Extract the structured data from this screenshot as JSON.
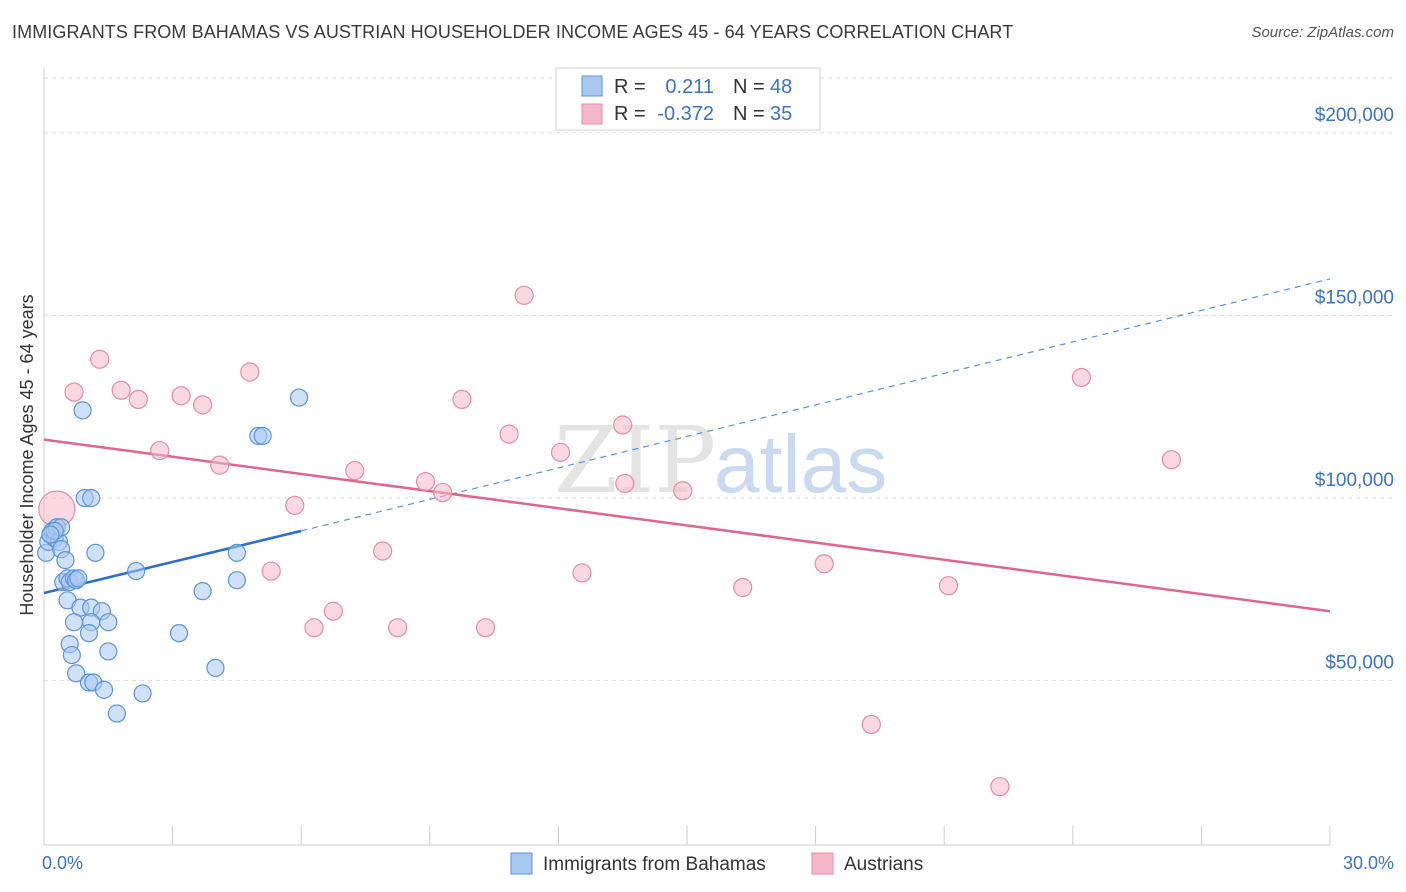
{
  "header": {
    "title": "IMMIGRANTS FROM BAHAMAS VS AUSTRIAN HOUSEHOLDER INCOME AGES 45 - 64 YEARS CORRELATION CHART",
    "source": "Source: ZipAtlas.com"
  },
  "watermark": {
    "zip": "ZIP",
    "atlas": "atlas"
  },
  "colors": {
    "blue_fill": "#a9c8f0",
    "blue_stroke": "#5b93d8",
    "blue_line": "#2a6fcf",
    "pink_fill": "#f5b8cb",
    "pink_stroke": "#e88aa6",
    "pink_line": "#e0658e",
    "tick_text": "#3b73c7",
    "grid": "#dddddd"
  },
  "legend": {
    "rows": [
      {
        "r_label": "R =",
        "r_value": "0.211",
        "n_label": "N =",
        "n_value": "48"
      },
      {
        "r_label": "R =",
        "r_value": "-0.372",
        "n_label": "N =",
        "n_value": "35"
      }
    ]
  },
  "chart_data": {
    "type": "scatter",
    "title": "IMMIGRANTS FROM BAHAMAS VS AUSTRIAN HOUSEHOLDER INCOME AGES 45 - 64 YEARS CORRELATION CHART",
    "xlabel": "",
    "ylabel": "Householder Income Ages 45 - 64 years",
    "xlim": [
      0,
      30
    ],
    "ylim": [
      5000,
      215000
    ],
    "x_tick_labels": [
      "0.0%",
      "30.0%"
    ],
    "y_ticks": [
      50000,
      100000,
      150000,
      200000
    ],
    "y_tick_labels": [
      "$50,000",
      "$100,000",
      "$150,000",
      "$200,000"
    ],
    "grid": true,
    "legend_position": "top-center",
    "series": [
      {
        "name": "Immigrants from Bahamas",
        "color": "#5b93d8",
        "R": 0.211,
        "N": 48,
        "trend": {
          "x": [
            0.0,
            6.0
          ],
          "y": [
            74000,
            91000
          ],
          "dashed_extension": {
            "x": [
              6.0,
              30.0
            ],
            "y": [
              91000,
              160000
            ]
          }
        },
        "points": [
          [
            0.05,
            85000
          ],
          [
            0.1,
            88000
          ],
          [
            0.15,
            90000
          ],
          [
            0.2,
            91000
          ],
          [
            0.25,
            89000
          ],
          [
            0.3,
            92000
          ],
          [
            0.35,
            88000
          ],
          [
            0.4,
            92000
          ],
          [
            0.4,
            86000
          ],
          [
            0.5,
            83000
          ],
          [
            0.45,
            77000
          ],
          [
            0.55,
            78000
          ],
          [
            0.6,
            77000
          ],
          [
            0.7,
            78000
          ],
          [
            0.75,
            77500
          ],
          [
            0.8,
            78000
          ],
          [
            0.9,
            124000
          ],
          [
            0.95,
            100000
          ],
          [
            1.1,
            100000
          ],
          [
            1.2,
            85000
          ],
          [
            0.55,
            72000
          ],
          [
            0.85,
            70000
          ],
          [
            1.1,
            70000
          ],
          [
            1.35,
            69000
          ],
          [
            1.1,
            66000
          ],
          [
            0.7,
            66000
          ],
          [
            1.05,
            63000
          ],
          [
            0.6,
            60000
          ],
          [
            0.65,
            57000
          ],
          [
            1.5,
            58000
          ],
          [
            0.75,
            52000
          ],
          [
            1.05,
            49500
          ],
          [
            1.15,
            49500
          ],
          [
            1.4,
            47500
          ],
          [
            1.5,
            66000
          ],
          [
            1.7,
            41000
          ],
          [
            2.15,
            80000
          ],
          [
            2.3,
            46500
          ],
          [
            3.15,
            63000
          ],
          [
            3.7,
            74500
          ],
          [
            4.0,
            53500
          ],
          [
            4.5,
            85000
          ],
          [
            4.5,
            77500
          ],
          [
            5.0,
            117000
          ],
          [
            5.1,
            117000
          ],
          [
            5.95,
            127500
          ],
          [
            0.25,
            91000
          ],
          [
            0.15,
            90000
          ]
        ]
      },
      {
        "name": "Austrians",
        "color": "#e88aa6",
        "R": -0.372,
        "N": 35,
        "trend": {
          "x": [
            0.0,
            30.0
          ],
          "y": [
            116000,
            69000
          ]
        },
        "points": [
          [
            0.3,
            97000
          ],
          [
            0.7,
            129000
          ],
          [
            1.3,
            138000
          ],
          [
            1.8,
            129500
          ],
          [
            2.2,
            127000
          ],
          [
            2.7,
            113000
          ],
          [
            3.2,
            128000
          ],
          [
            3.7,
            125500
          ],
          [
            4.1,
            109000
          ],
          [
            4.8,
            134500
          ],
          [
            5.3,
            80000
          ],
          [
            5.85,
            98000
          ],
          [
            6.3,
            64500
          ],
          [
            6.75,
            69000
          ],
          [
            7.25,
            107500
          ],
          [
            7.9,
            85500
          ],
          [
            8.25,
            64500
          ],
          [
            8.9,
            104500
          ],
          [
            9.3,
            101500
          ],
          [
            9.75,
            127000
          ],
          [
            10.3,
            64500
          ],
          [
            10.85,
            117500
          ],
          [
            11.2,
            155500
          ],
          [
            12.05,
            112500
          ],
          [
            12.55,
            79500
          ],
          [
            13.5,
            120000
          ],
          [
            13.55,
            104000
          ],
          [
            14.9,
            102000
          ],
          [
            16.3,
            75500
          ],
          [
            18.2,
            82000
          ],
          [
            19.3,
            38000
          ],
          [
            21.1,
            76000
          ],
          [
            22.3,
            21000
          ],
          [
            24.2,
            133000
          ],
          [
            26.3,
            110500
          ]
        ]
      }
    ]
  },
  "bottom_legend": {
    "items": [
      {
        "label": "Immigrants from Bahamas"
      },
      {
        "label": "Austrians"
      }
    ]
  }
}
